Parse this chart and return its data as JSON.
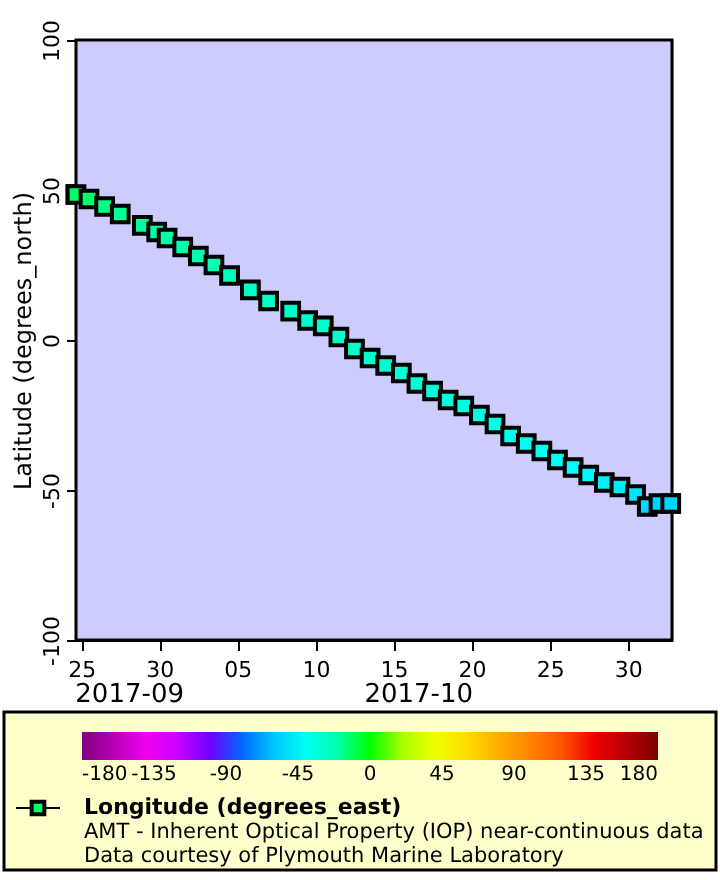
{
  "chart_data": {
    "type": "scatter",
    "ylabel": "Latitude (degrees_north)",
    "legend": "bottom",
    "marker": "square",
    "clim": [
      -180,
      180
    ],
    "cticks": [
      -180,
      -135,
      -90,
      -45,
      0,
      45,
      90,
      135,
      180
    ],
    "xlim": [
      "2017-09-24T16:00",
      "2017-11-01T20:00"
    ],
    "xticks": [
      {
        "value": "2017-09-25",
        "label": "25"
      },
      {
        "value": "2017-09-30",
        "label": "30"
      },
      {
        "value": "2017-10-05",
        "label": "05"
      },
      {
        "value": "2017-10-10",
        "label": "10"
      },
      {
        "value": "2017-10-15",
        "label": "15"
      },
      {
        "value": "2017-10-20",
        "label": "20"
      },
      {
        "value": "2017-10-25",
        "label": "25"
      },
      {
        "value": "2017-10-30",
        "label": "30"
      }
    ],
    "ylim": [
      -100,
      100
    ],
    "yticks": [
      -100,
      -50,
      0,
      50,
      100
    ],
    "annotations": [
      "2017-09",
      "2017-10",
      "AMT - Inherent Optical Property (IOP) near-continuous data",
      "Data courtesy of Plymouth Marine Laboratory"
    ],
    "series": [
      {
        "name": "Longitude (degrees_east)",
        "x": [
          "2017-09-24T16:00",
          "2017-09-25T12:00",
          "2017-09-26T12:00",
          "2017-09-27T12:00",
          "2017-09-28T22:00",
          "2017-09-29T20:00",
          "2017-09-30T12:00",
          "2017-10-01T12:00",
          "2017-10-02T12:00",
          "2017-10-03T12:00",
          "2017-10-04T12:00",
          "2017-10-05T20:00",
          "2017-10-07T00:00",
          "2017-10-08T10:00",
          "2017-10-09T12:00",
          "2017-10-10T12:00",
          "2017-10-11T12:00",
          "2017-10-12T12:00",
          "2017-10-13T12:00",
          "2017-10-14T12:00",
          "2017-10-15T12:00",
          "2017-10-16T12:00",
          "2017-10-17T12:00",
          "2017-10-18T12:00",
          "2017-10-19T12:00",
          "2017-10-20T12:00",
          "2017-10-21T12:00",
          "2017-10-22T12:00",
          "2017-10-23T12:00",
          "2017-10-24T12:00",
          "2017-10-25T12:00",
          "2017-10-26T12:00",
          "2017-10-27T12:00",
          "2017-10-28T12:00",
          "2017-10-29T12:00",
          "2017-10-30T12:00",
          "2017-10-31T06:00",
          "2017-11-01T00:00",
          "2017-11-01T18:00"
        ],
        "values": [
          48.5,
          47,
          44.5,
          42,
          38.2,
          36,
          34,
          31,
          28,
          25,
          21.5,
          16.7,
          13,
          9.6,
          6.5,
          4.7,
          1,
          -3,
          -6,
          -8.5,
          -11,
          -14.5,
          -17,
          -20,
          -22,
          -25,
          -28,
          -32,
          -34.5,
          -37,
          -40,
          -42.5,
          -45,
          -47.5,
          -49,
          -51.5,
          -55.5,
          -54.5,
          -54.5
        ],
        "cvalues": [
          -8,
          -10,
          -13,
          -16,
          -19,
          -20,
          -20,
          -21,
          -22,
          -23,
          -24,
          -25,
          -26,
          -27,
          -27,
          -28,
          -28,
          -28,
          -28,
          -29,
          -30,
          -30,
          -31,
          -32,
          -33,
          -34,
          -35,
          -37,
          -39,
          -41,
          -43,
          -45,
          -47,
          -49,
          -51,
          -53,
          -55,
          -57,
          -57
        ]
      }
    ]
  }
}
